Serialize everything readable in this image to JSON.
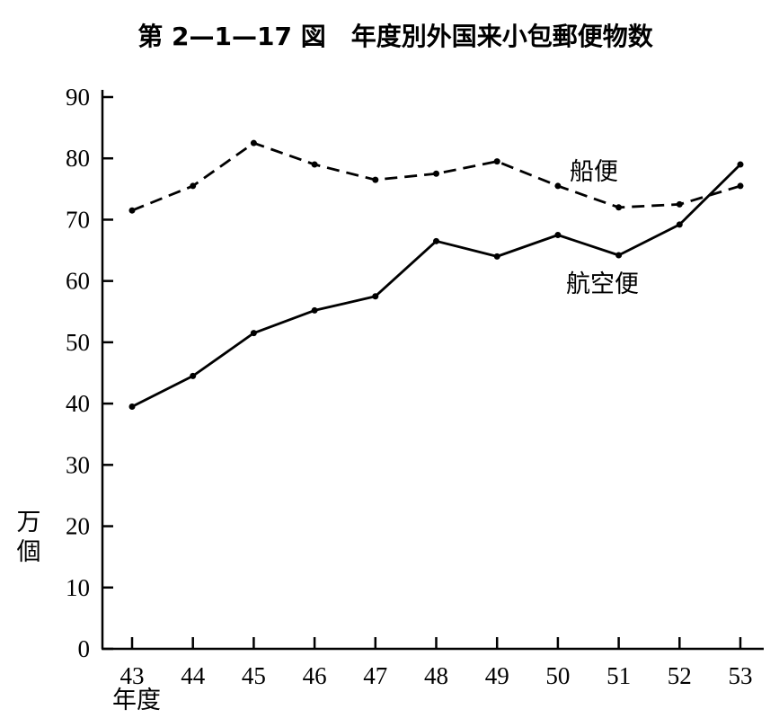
{
  "chart_data": {
    "type": "line",
    "title": "第 2—1—17 図　年度別外国来小包郵便物数",
    "xlabel": "年度",
    "ylabel": "万個",
    "x": [
      "43",
      "44",
      "45",
      "46",
      "47",
      "48",
      "49",
      "50",
      "51",
      "52",
      "53"
    ],
    "ylim": [
      0,
      90
    ],
    "yticks": [
      "0",
      "10",
      "20",
      "30",
      "40",
      "50",
      "60",
      "70",
      "80",
      "90"
    ],
    "grid": false,
    "series": [
      {
        "name": "船便",
        "style": "dashed",
        "values": [
          71.5,
          75.5,
          82.5,
          79,
          76.5,
          77.5,
          79.5,
          75.5,
          72,
          72.5,
          75.5
        ]
      },
      {
        "name": "航空便",
        "style": "solid",
        "values": [
          39.5,
          44.5,
          51.5,
          55.2,
          57.5,
          66.5,
          64,
          67.5,
          64.2,
          69.2,
          79
        ]
      }
    ]
  }
}
